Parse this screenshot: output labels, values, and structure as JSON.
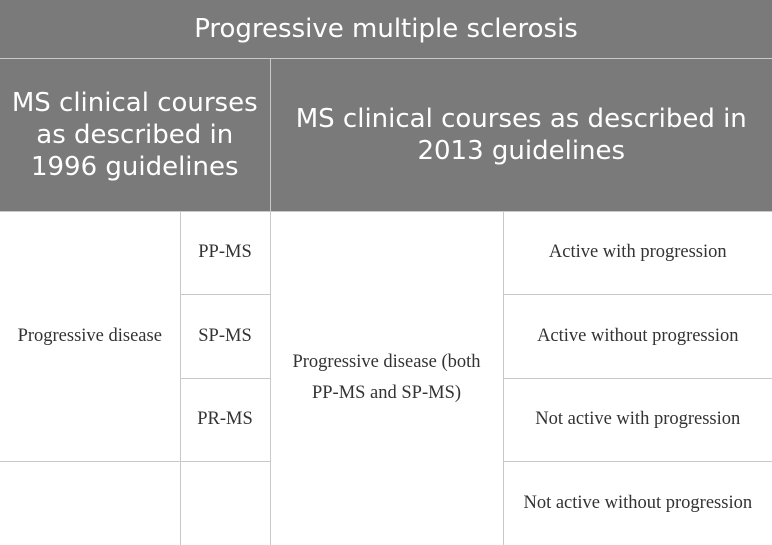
{
  "table": {
    "title": "Progressive multiple sclerosis",
    "header_1996": "MS clinical courses as described in 1996 guidelines",
    "header_2013": "MS clinical courses as described in 2013 guidelines",
    "col_1996": "Progressive disease",
    "subtypes_1996": [
      "PP-MS",
      "SP-MS",
      "PR-MS",
      ""
    ],
    "col_2013": "Progressive disease (both PP-MS and SP-MS)",
    "subtypes_2013": [
      "Active with progression",
      "Active without progression",
      "Not active with progression",
      "Not active without progression"
    ]
  }
}
